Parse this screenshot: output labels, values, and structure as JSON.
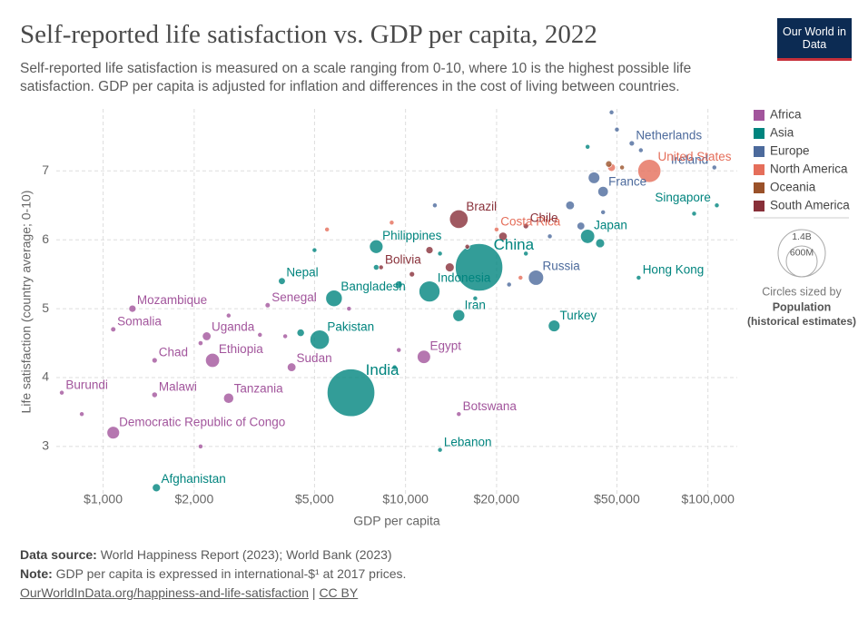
{
  "header": {
    "title": "Self-reported life satisfaction vs. GDP per capita, 2022",
    "subtitle": "Self-reported life satisfaction is measured on a scale ranging from 0-10, where 10 is the highest possible life satisfaction. GDP per capita is adjusted for inflation and differences in the cost of living between countries.",
    "logo": "Our World in Data"
  },
  "chart_data": {
    "type": "scatter",
    "x_label": "GDP per capita",
    "y_label": "Life satisfaction (country average; 0-10)",
    "xlim": [
      700,
      125000
    ],
    "ylim": [
      2.3,
      7.9
    ],
    "log_x": true,
    "grid": true,
    "legend_position": "right",
    "xticks": [
      {
        "value": 1000,
        "label": "$1,000"
      },
      {
        "value": 2000,
        "label": "$2,000"
      },
      {
        "value": 5000,
        "label": "$5,000"
      },
      {
        "value": 10000,
        "label": "$10,000"
      },
      {
        "value": 20000,
        "label": "$20,000"
      },
      {
        "value": 50000,
        "label": "$50,000"
      },
      {
        "value": 100000,
        "label": "$100,000"
      }
    ],
    "yticks": [
      3,
      4,
      5,
      6,
      7
    ],
    "size_legend": {
      "title": "Circles sized by",
      "variable": "Population",
      "note": "(historical estimates)",
      "sizes": [
        {
          "value": 1400000000,
          "label": "1.4B"
        },
        {
          "value": 600000000,
          "label": "600M"
        }
      ]
    },
    "series": [
      {
        "name": "Africa",
        "color": "#a2559c",
        "labels": [
          "Mozambique",
          "Somalia",
          "Chad",
          "Burundi",
          "Malawi",
          "Democratic Republic of Congo",
          "Uganda",
          "Ethiopia",
          "Tanzania",
          "Senegal",
          "Sudan",
          "Egypt",
          "Botswana",
          null,
          null,
          null,
          null,
          null,
          null,
          null,
          null
        ],
        "x": [
          1250,
          1080,
          1480,
          730,
          1480,
          1080,
          2200,
          2300,
          2600,
          3500,
          4200,
          11500,
          15000,
          4000,
          2600,
          3300,
          9500,
          6500,
          2100,
          850,
          2100
        ],
        "values": [
          5.0,
          4.7,
          4.25,
          3.78,
          3.75,
          3.2,
          4.6,
          4.25,
          3.7,
          5.05,
          4.15,
          4.3,
          3.47,
          4.6,
          4.9,
          4.62,
          4.4,
          5.0,
          4.5,
          3.47,
          3.0
        ],
        "sizes": [
          33000000,
          17000000,
          18000000,
          13000000,
          20000000,
          99000000,
          47000000,
          123000000,
          65000000,
          17000000,
          47000000,
          111000000,
          2600000,
          10000000,
          8000000,
          9000000,
          6000000,
          12000000,
          15000000,
          6000000,
          5000000
        ]
      },
      {
        "name": "Asia",
        "color": "#00847e",
        "labels": [
          "Afghanistan",
          "Nepal",
          "Pakistan",
          "Bangladesh",
          "India",
          "Philippines",
          "Indonesia",
          "China",
          "Iran",
          "Lebanon",
          "Turkey",
          "Japan",
          "Singapore",
          "Hong Kong",
          null,
          null,
          null,
          null,
          null,
          null,
          null,
          null,
          null,
          null,
          null
        ],
        "x": [
          1500,
          3900,
          5200,
          5800,
          6600,
          8000,
          12000,
          17500,
          15000,
          13000,
          31000,
          40000,
          107000,
          59000,
          5000,
          8000,
          9500,
          4500,
          13000,
          25000,
          44000,
          90000,
          17000,
          9200,
          40000
        ],
        "values": [
          2.4,
          5.4,
          4.55,
          5.15,
          3.78,
          5.9,
          5.25,
          5.6,
          4.9,
          2.95,
          4.75,
          6.05,
          6.5,
          5.45,
          5.85,
          5.6,
          5.35,
          4.65,
          5.8,
          5.8,
          5.95,
          6.38,
          5.15,
          4.15,
          7.35
        ],
        "sizes": [
          41000000,
          30000000,
          235000000,
          171000000,
          1420000000,
          115000000,
          275000000,
          1410000000,
          89000000,
          5500000,
          85000000,
          125000000,
          6000000,
          7000000,
          6000000,
          20000000,
          33000000,
          35000000,
          10000000,
          8000000,
          50000000,
          3000000,
          10000000,
          4000000,
          9000000
        ]
      },
      {
        "name": "Europe",
        "color": "#4c6a9c",
        "labels": [
          "Netherlands",
          "Ireland",
          "France",
          "Russia",
          null,
          null,
          null,
          null,
          null,
          null,
          null,
          null,
          null,
          null
        ],
        "x": [
          56000,
          105000,
          45000,
          27000,
          30000,
          35000,
          42000,
          50000,
          48000,
          60000,
          22000,
          12500,
          38000,
          45000
        ],
        "values": [
          7.4,
          7.05,
          6.7,
          5.45,
          6.05,
          6.5,
          6.9,
          7.6,
          7.85,
          7.3,
          5.35,
          6.5,
          6.2,
          6.4
        ],
        "sizes": [
          18000000,
          5000000,
          68000000,
          144000000,
          10000000,
          47000000,
          84000000,
          6000000,
          5000000,
          9000000,
          4000000,
          3000000,
          38000000,
          11000000
        ]
      },
      {
        "name": "North America",
        "color": "#e56e5a",
        "labels": [
          "United States",
          "Costa Rica",
          null,
          null,
          null,
          null
        ],
        "x": [
          64000,
          20000,
          9000,
          5500,
          48000,
          24000
        ],
        "values": [
          7.0,
          6.15,
          6.25,
          6.15,
          7.05,
          5.45
        ],
        "sizes": [
          333000000,
          5000000,
          6000000,
          10000000,
          38000000,
          3000000
        ]
      },
      {
        "name": "Oceania",
        "color": "#9a5129",
        "labels": [
          null,
          null
        ],
        "x": [
          47000,
          52000
        ],
        "values": [
          7.1,
          7.05
        ],
        "sizes": [
          26000000,
          5000000
        ]
      },
      {
        "name": "South America",
        "color": "#883039",
        "labels": [
          "Brazil",
          "Chile",
          "Bolivia",
          null,
          null,
          null,
          null,
          null
        ],
        "x": [
          15000,
          25000,
          8300,
          14000,
          12000,
          16000,
          21000,
          10500
        ],
        "values": [
          6.3,
          6.2,
          5.6,
          5.6,
          5.85,
          5.9,
          6.05,
          5.5
        ],
        "sizes": [
          215000000,
          19000000,
          12000000,
          50000000,
          33000000,
          7000000,
          45000000,
          18000000
        ]
      }
    ]
  },
  "footer": {
    "source_label": "Data source:",
    "source": "World Happiness Report (2023); World Bank (2023)",
    "note_label": "Note:",
    "note": "GDP per capita is expressed in international-$¹ at 2017 prices.",
    "link": "OurWorldInData.org/happiness-and-life-satisfaction",
    "separator": "|",
    "license": "CC BY"
  }
}
